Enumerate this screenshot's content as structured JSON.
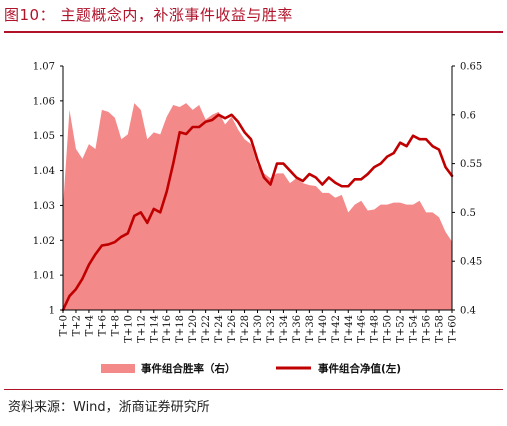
{
  "figure": {
    "title": "图10：  主题概念内，补涨事件收益与胜率",
    "source": "资料来源：Wind，浙商证券研究所"
  },
  "chart_data": {
    "type": "line+area",
    "x_label_step": 2,
    "x": [
      "T+0",
      "T+1",
      "T+2",
      "T+3",
      "T+4",
      "T+5",
      "T+6",
      "T+7",
      "T+8",
      "T+9",
      "T+10",
      "T+11",
      "T+12",
      "T+13",
      "T+14",
      "T+15",
      "T+16",
      "T+17",
      "T+18",
      "T+19",
      "T+20",
      "T+21",
      "T+22",
      "T+23",
      "T+24",
      "T+25",
      "T+26",
      "T+27",
      "T+28",
      "T+29",
      "T+30",
      "T+31",
      "T+32",
      "T+33",
      "T+34",
      "T+35",
      "T+36",
      "T+37",
      "T+38",
      "T+39",
      "T+40",
      "T+41",
      "T+42",
      "T+43",
      "T+44",
      "T+45",
      "T+46",
      "T+47",
      "T+48",
      "T+49",
      "T+50",
      "T+51",
      "T+52",
      "T+53",
      "T+54",
      "T+55",
      "T+56",
      "T+57",
      "T+58",
      "T+59",
      "T+60"
    ],
    "left_axis": {
      "min": 1.0,
      "max": 1.07,
      "ticks": [
        "1",
        "1.01",
        "1.02",
        "1.03",
        "1.04",
        "1.05",
        "1.06",
        "1.07"
      ]
    },
    "right_axis": {
      "min": 0.4,
      "max": 0.65,
      "ticks": [
        "0.4",
        "0.45",
        "0.5",
        "0.55",
        "0.6",
        "0.65"
      ]
    },
    "series": [
      {
        "name": "事件组合胜率（右）",
        "kind": "area",
        "axis": "right",
        "color": "#f4898a",
        "values": [
          0.505,
          0.605,
          0.565,
          0.555,
          0.57,
          0.565,
          0.605,
          0.603,
          0.597,
          0.575,
          0.58,
          0.612,
          0.605,
          0.575,
          0.582,
          0.58,
          0.598,
          0.61,
          0.608,
          0.612,
          0.605,
          0.61,
          0.595,
          0.6,
          0.603,
          0.59,
          0.598,
          0.585,
          0.575,
          0.57,
          0.548,
          0.54,
          0.535,
          0.54,
          0.54,
          0.53,
          0.535,
          0.53,
          0.528,
          0.527,
          0.52,
          0.52,
          0.515,
          0.518,
          0.5,
          0.508,
          0.512,
          0.502,
          0.503,
          0.508,
          0.508,
          0.51,
          0.51,
          0.508,
          0.508,
          0.512,
          0.5,
          0.5,
          0.495,
          0.48,
          0.47
        ]
      },
      {
        "name": "事件组合净值(左)",
        "kind": "line",
        "axis": "left",
        "color": "#c00000",
        "values": [
          1.0,
          1.004,
          1.006,
          1.009,
          1.013,
          1.016,
          1.0185,
          1.0188,
          1.0195,
          1.021,
          1.022,
          1.027,
          1.028,
          1.025,
          1.029,
          1.028,
          1.034,
          1.042,
          1.051,
          1.0505,
          1.0525,
          1.0525,
          1.054,
          1.0545,
          1.056,
          1.055,
          1.056,
          1.054,
          1.051,
          1.049,
          1.043,
          1.038,
          1.036,
          1.042,
          1.042,
          1.04,
          1.038,
          1.037,
          1.039,
          1.038,
          1.036,
          1.038,
          1.0365,
          1.0355,
          1.0355,
          1.0375,
          1.0375,
          1.039,
          1.041,
          1.042,
          1.044,
          1.045,
          1.048,
          1.047,
          1.05,
          1.049,
          1.049,
          1.047,
          1.046,
          1.041,
          1.0385
        ]
      }
    ],
    "legend_position": "bottom"
  }
}
